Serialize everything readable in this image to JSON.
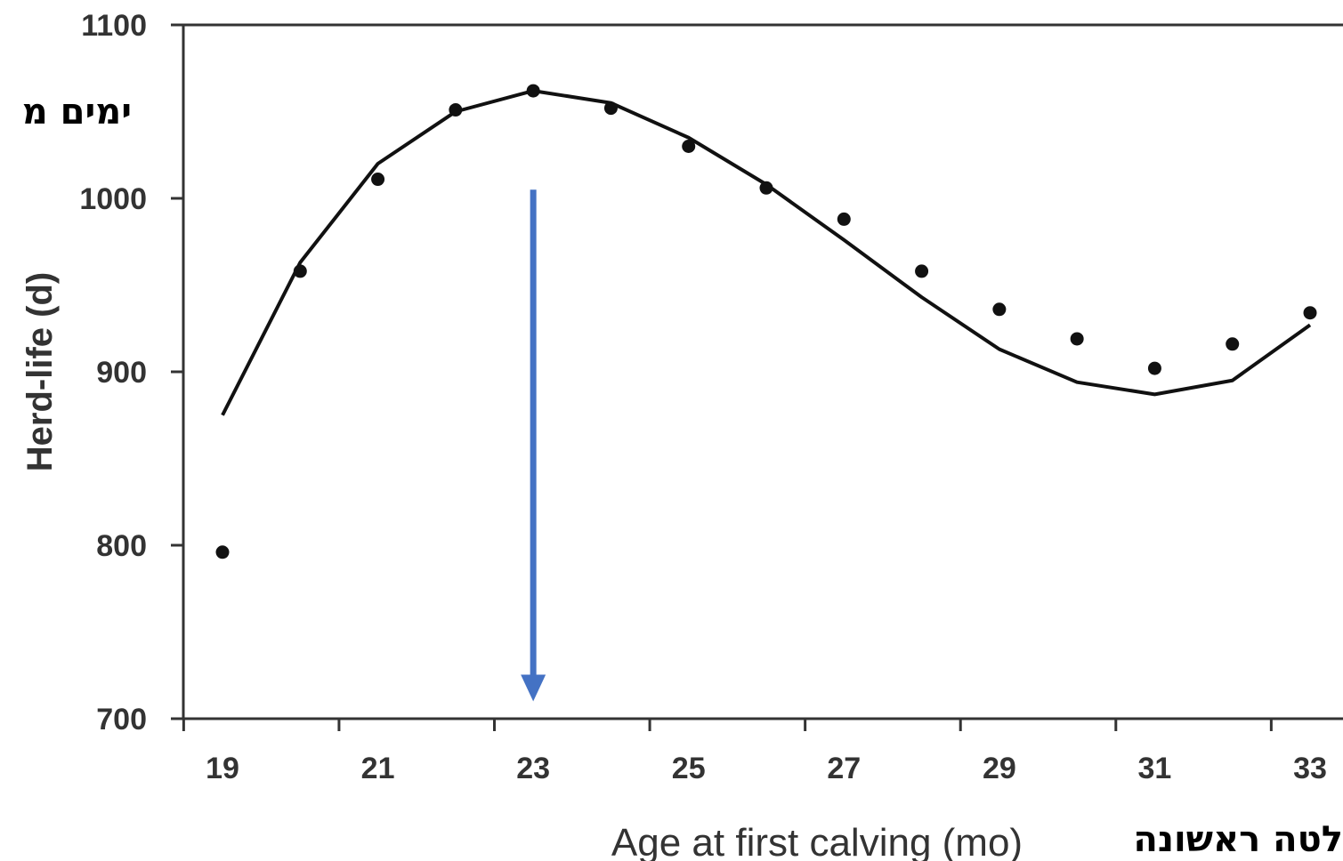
{
  "chart_data": {
    "type": "line",
    "x_ticks": [
      "19",
      "21",
      "23",
      "25",
      "27",
      "29",
      "31",
      "33"
    ],
    "y_ticks": [
      "700",
      "800",
      "900",
      "1000",
      "1100"
    ],
    "xlim": [
      19,
      33
    ],
    "ylim": [
      700,
      1100
    ],
    "xlabel": "Age at first calving (mo)",
    "ylabel": "Herd-life (d)",
    "hebrew_ylabel": "ימים מ",
    "hebrew_xlabel": "לטה ראשונה",
    "series": [
      {
        "type": "line",
        "x": [
          19,
          20,
          21,
          22,
          23,
          24,
          25,
          26,
          27,
          28,
          29,
          30,
          31,
          32,
          33
        ],
        "values": [
          875,
          963,
          1020,
          1050,
          1062,
          1055,
          1035,
          1008,
          976,
          943,
          913,
          894,
          887,
          895,
          927
        ]
      },
      {
        "type": "scatter",
        "x": [
          19,
          20,
          21,
          22,
          23,
          24,
          25,
          26,
          27,
          28,
          29,
          30,
          31,
          32,
          33
        ],
        "values": [
          796,
          958,
          1011,
          1051,
          1062,
          1052,
          1030,
          1006,
          988,
          958,
          936,
          919,
          902,
          916,
          934
        ]
      }
    ],
    "annotation": {
      "type": "arrow",
      "x": 23,
      "y_start": 1005,
      "y_end": 711,
      "color": "#4472C4"
    },
    "grid": false
  }
}
